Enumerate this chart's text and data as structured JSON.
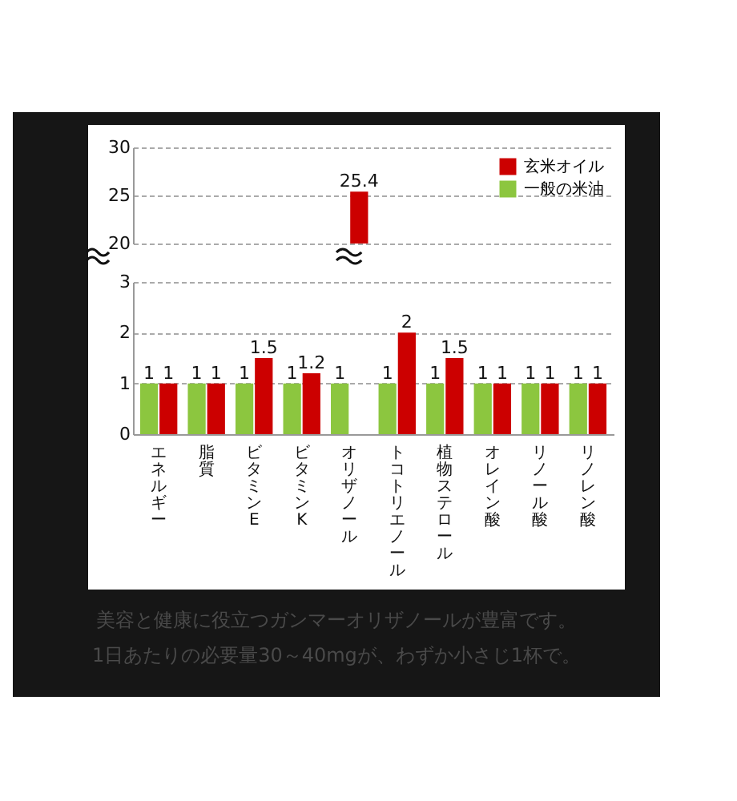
{
  "chart_data": [
    {
      "type": "bar",
      "categories": [
        "エネルギー",
        "脂質",
        "ビタミンE",
        "ビタミンK",
        "オリザノール",
        "トコトリエノール",
        "植物ステロール",
        "オレイン酸",
        "リノール酸",
        "リノレン酸"
      ],
      "series": [
        {
          "name": "玄米オイル",
          "color": "#cc0000",
          "values": [
            null,
            null,
            null,
            null,
            25.4,
            null,
            null,
            null,
            null,
            null
          ]
        },
        {
          "name": "一般の米油",
          "color": "#8cc63f",
          "values": [
            null,
            null,
            null,
            null,
            null,
            null,
            null,
            null,
            null,
            null
          ]
        }
      ],
      "ylim": [
        20,
        30
      ],
      "yticks": [
        20,
        25,
        30
      ],
      "grid": "y",
      "legend": "top right",
      "data_labels": true,
      "tick_labels": "y"
    },
    {
      "type": "bar",
      "categories": [
        "エネルギー",
        "脂質",
        "ビタミンE",
        "ビタミンK",
        "オリザノール",
        "トコトリエノール",
        "植物ステロール",
        "オレイン酸",
        "リノール酸",
        "リノレン酸"
      ],
      "series": [
        {
          "color": "#cc0000",
          "values": [
            1,
            1,
            1.5,
            1.2,
            null,
            2,
            1.5,
            1,
            1,
            1
          ],
          "value_labels": [
            "1",
            "1",
            "1.5",
            "1.2",
            null,
            "2",
            "1.5",
            "1",
            "1",
            "1"
          ]
        },
        {
          "color": "#8cc63f",
          "values": [
            1,
            1,
            1,
            1,
            1,
            1,
            1,
            1,
            1,
            1
          ],
          "value_labels": [
            "1",
            "1",
            "1",
            "1",
            "1",
            "1",
            "1",
            "1",
            "1",
            "1"
          ]
        }
      ],
      "ylim": [
        0,
        3
      ],
      "yticks": [
        0,
        1,
        2,
        3
      ],
      "grid": "y",
      "annotations": [
        "美容と健康に役立つガンマーオリザノールが豊富です。",
        "1日あたりの必要量30～40mgが、わずか小さじ1杯で。"
      ]
    }
  ]
}
